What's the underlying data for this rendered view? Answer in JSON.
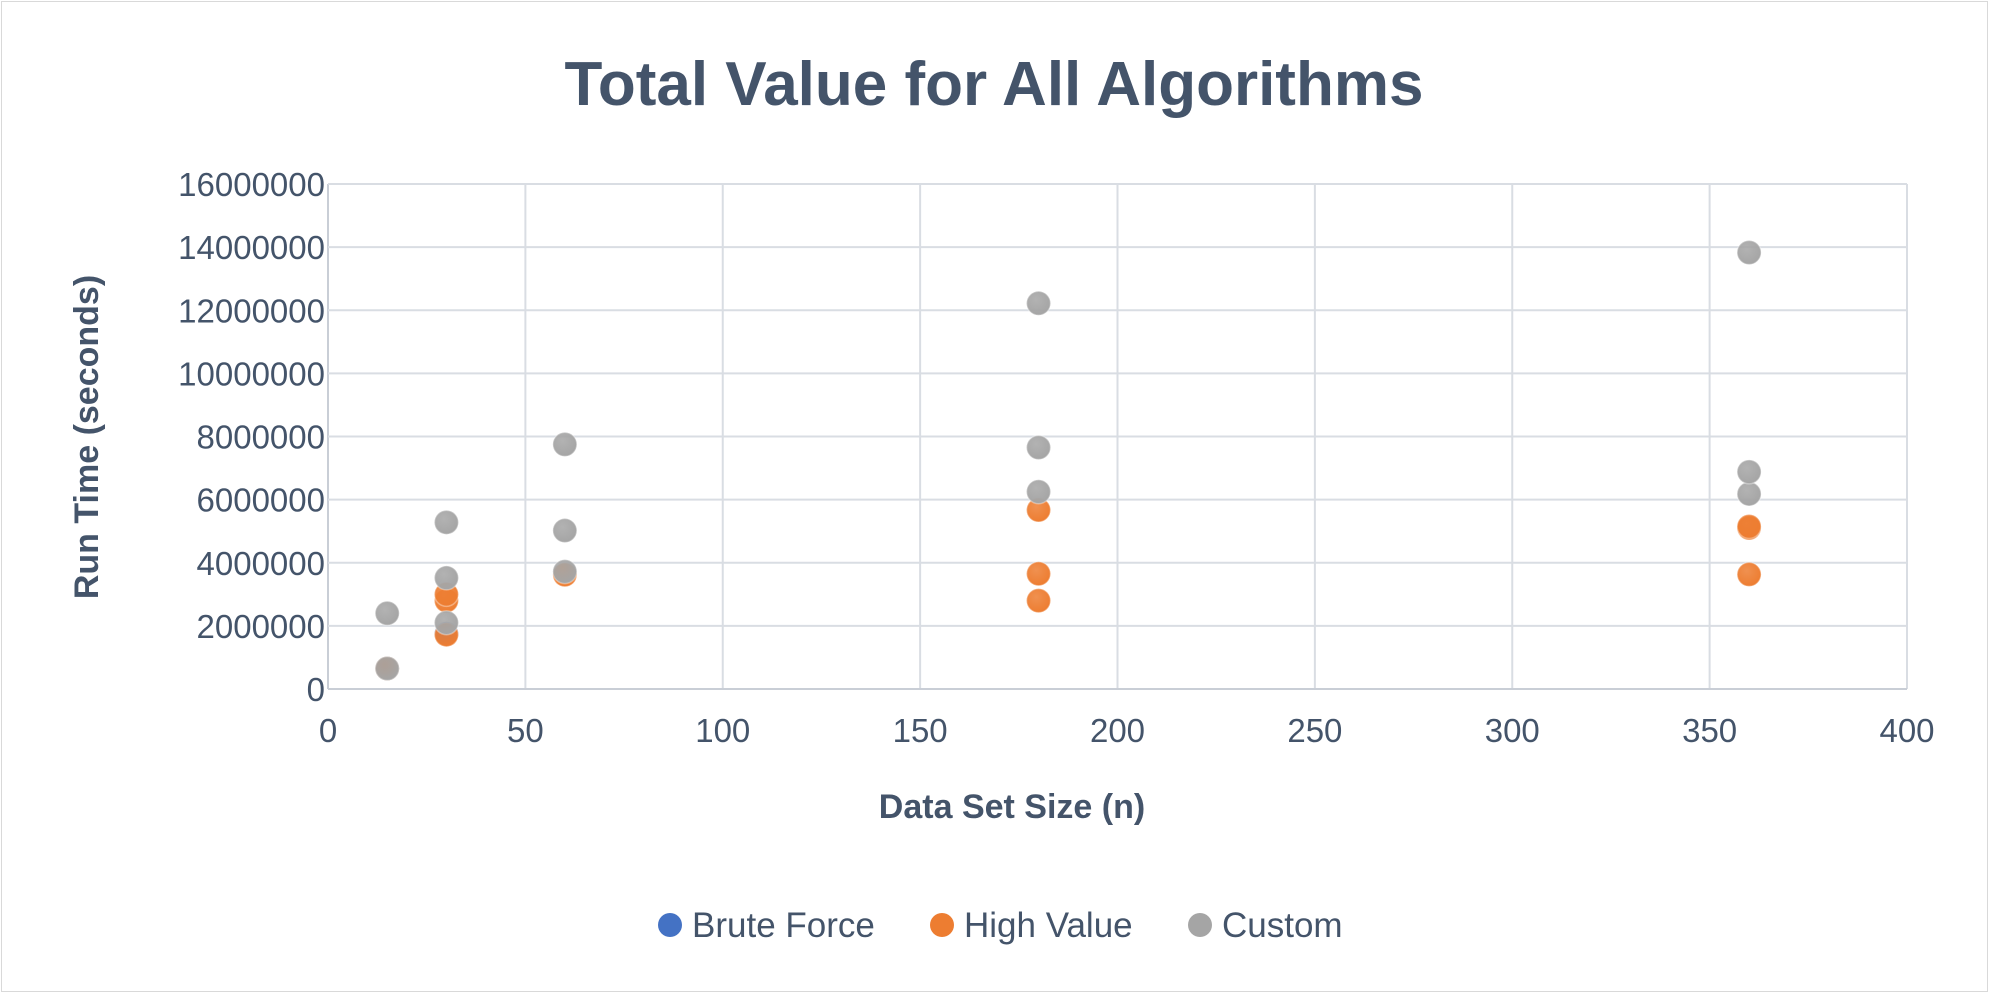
{
  "chart_data": {
    "type": "scatter",
    "title": "Total Value for All Algorithms",
    "xlabel": "Data Set Size (n)",
    "ylabel": "Run Time (seconds)",
    "xlim": [
      0,
      400
    ],
    "ylim": [
      0,
      16000000
    ],
    "x_ticks": [
      "0",
      "50",
      "100",
      "150",
      "200",
      "250",
      "300",
      "350",
      "400"
    ],
    "y_ticks": [
      "0",
      "2000000",
      "4000000",
      "6000000",
      "8000000",
      "10000000",
      "12000000",
      "14000000",
      "16000000"
    ],
    "grid": true,
    "legend_position": "bottom",
    "series": [
      {
        "name": "Brute Force",
        "color": "#4472c4",
        "points": [
          [
            15,
            650000
          ],
          [
            30,
            1750000
          ]
        ]
      },
      {
        "name": "High Value",
        "color": "#ed7d31",
        "points": [
          [
            15,
            650000
          ],
          [
            30,
            1720000
          ],
          [
            30,
            2800000
          ],
          [
            30,
            3000000
          ],
          [
            60,
            3620000
          ],
          [
            180,
            2800000
          ],
          [
            180,
            3650000
          ],
          [
            180,
            5670000
          ],
          [
            360,
            3630000
          ],
          [
            360,
            5100000
          ],
          [
            360,
            5150000
          ]
        ]
      },
      {
        "name": "Custom",
        "color": "#a5a5a5",
        "points": [
          [
            15,
            650000
          ],
          [
            15,
            2400000
          ],
          [
            30,
            2100000
          ],
          [
            30,
            3520000
          ],
          [
            30,
            5280000
          ],
          [
            60,
            3720000
          ],
          [
            60,
            5020000
          ],
          [
            60,
            7750000
          ],
          [
            180,
            6250000
          ],
          [
            180,
            7650000
          ],
          [
            180,
            12220000
          ],
          [
            360,
            6180000
          ],
          [
            360,
            6880000
          ],
          [
            360,
            13830000
          ]
        ]
      }
    ]
  }
}
